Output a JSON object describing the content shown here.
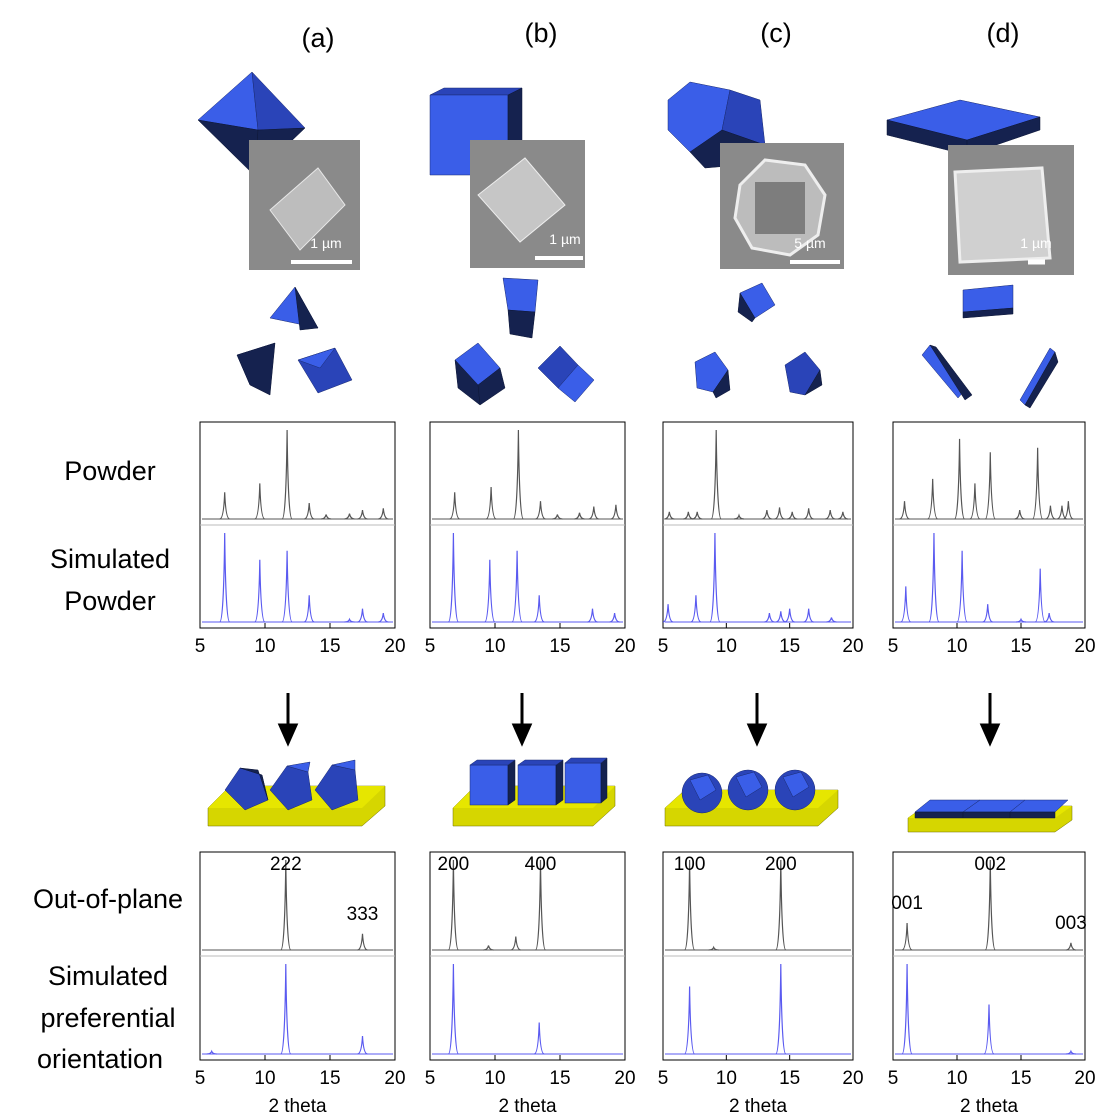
{
  "figure": {
    "column_labels": [
      "(a)",
      "(b)",
      "(c)",
      "(d)"
    ],
    "scale_bars": [
      "1 µm",
      "1 µm",
      "5 µm",
      "1 µm"
    ],
    "row_labels": [
      [
        "Powder"
      ],
      [
        "Simulated",
        "Powder"
      ],
      [
        "Out-of-plane"
      ],
      [
        "Simulated",
        "preferential",
        "orientation"
      ]
    ]
  },
  "chart_data": [
    {
      "type": "xrd",
      "xlim": [
        5,
        20
      ],
      "xticks": [
        5,
        10,
        15,
        20
      ],
      "ylim": [
        0,
        1
      ],
      "series": [
        {
          "color": "#555555",
          "x": [
            6.9,
            9.6,
            11.7,
            13.4,
            14.7,
            16.5,
            17.5,
            19.1
          ],
          "values": [
            0.3,
            0.4,
            1,
            0.18,
            0.05,
            0.06,
            0.1,
            0.12
          ]
        },
        {
          "color": "#5a5af0",
          "x": [
            6.9,
            9.6,
            11.7,
            13.4,
            16.5,
            17.5,
            19.1
          ],
          "values": [
            1,
            0.7,
            0.8,
            0.3,
            0.03,
            0.15,
            0.1
          ]
        }
      ]
    },
    {
      "type": "xrd",
      "xlim": [
        5,
        20
      ],
      "xticks": [
        5,
        10,
        15,
        20
      ],
      "ylim": [
        0,
        1
      ],
      "series": [
        {
          "color": "#555555",
          "x": [
            6.9,
            9.7,
            11.8,
            13.5,
            14.8,
            16.5,
            17.6,
            19.3
          ],
          "values": [
            0.3,
            0.36,
            1,
            0.2,
            0.05,
            0.07,
            0.14,
            0.16
          ]
        },
        {
          "color": "#5a5af0",
          "x": [
            6.8,
            9.6,
            11.7,
            13.4,
            17.5,
            19.2
          ],
          "values": [
            1,
            0.7,
            0.8,
            0.3,
            0.15,
            0.1
          ]
        }
      ]
    },
    {
      "type": "xrd",
      "xlim": [
        5,
        20
      ],
      "xticks": [
        5,
        10,
        15,
        20
      ],
      "ylim": [
        0,
        1
      ],
      "series": [
        {
          "color": "#555555",
          "x": [
            5.5,
            7,
            7.7,
            9.2,
            11,
            13.2,
            14.2,
            15.2,
            16.5,
            18.2,
            19.2
          ],
          "values": [
            0.08,
            0.08,
            0.08,
            1,
            0.04,
            0.1,
            0.13,
            0.08,
            0.12,
            0.1,
            0.08
          ]
        },
        {
          "color": "#5a5af0",
          "x": [
            5.4,
            7.6,
            9.1,
            13.4,
            14.3,
            15,
            16.5,
            18.3
          ],
          "values": [
            0.2,
            0.3,
            1,
            0.1,
            0.12,
            0.15,
            0.15,
            0.05
          ]
        }
      ]
    },
    {
      "type": "xrd",
      "xlim": [
        5,
        20
      ],
      "xticks": [
        5,
        10,
        15,
        20
      ],
      "ylim": [
        0,
        1
      ],
      "series": [
        {
          "color": "#555555",
          "x": [
            5.9,
            8.1,
            10.2,
            11.4,
            12.6,
            14.9,
            16.3,
            17.3,
            18.2,
            18.7
          ],
          "values": [
            0.2,
            0.45,
            0.9,
            0.4,
            0.75,
            0.1,
            0.8,
            0.15,
            0.15,
            0.2
          ]
        },
        {
          "color": "#5a5af0",
          "x": [
            6,
            8.2,
            10.4,
            12.4,
            15,
            16.5,
            17.2
          ],
          "values": [
            0.4,
            1,
            0.8,
            0.2,
            0.03,
            0.6,
            0.1
          ]
        }
      ]
    },
    {
      "type": "xrd",
      "xlim": [
        5,
        20
      ],
      "xticks": [
        5,
        10,
        15,
        20
      ],
      "ylim": [
        0,
        1
      ],
      "xlabel": "2 theta",
      "annotations": [
        {
          "text": "222",
          "x": 11.6
        },
        {
          "text": "333",
          "x": 17.5
        }
      ],
      "series": [
        {
          "color": "#555555",
          "x": [
            11.6,
            17.5
          ],
          "values": [
            1,
            0.18
          ]
        },
        {
          "color": "#5a5af0",
          "x": [
            5.9,
            11.6,
            17.5
          ],
          "values": [
            0.03,
            1,
            0.2
          ]
        }
      ]
    },
    {
      "type": "xrd",
      "xlim": [
        5,
        20
      ],
      "xticks": [
        5,
        10,
        15,
        20
      ],
      "ylim": [
        0,
        1
      ],
      "xlabel": "2 theta",
      "annotations": [
        {
          "text": "200",
          "x": 6.8
        },
        {
          "text": "400",
          "x": 13.5
        }
      ],
      "series": [
        {
          "color": "#555555",
          "x": [
            6.8,
            9.5,
            11.6,
            13.5
          ],
          "values": [
            1,
            0.05,
            0.15,
            1
          ]
        },
        {
          "color": "#5a5af0",
          "x": [
            6.8,
            13.4
          ],
          "values": [
            1,
            0.35
          ]
        }
      ]
    },
    {
      "type": "xrd",
      "xlim": [
        5,
        20
      ],
      "xticks": [
        5,
        10,
        15,
        20
      ],
      "ylim": [
        0,
        1
      ],
      "xlabel": "2 theta",
      "annotations": [
        {
          "text": "100",
          "x": 7.1
        },
        {
          "text": "200",
          "x": 14.3
        }
      ],
      "series": [
        {
          "color": "#555555",
          "x": [
            7.1,
            9,
            14.3
          ],
          "values": [
            1,
            0.03,
            1
          ]
        },
        {
          "color": "#5a5af0",
          "x": [
            7.1,
            14.3
          ],
          "values": [
            0.75,
            1
          ]
        }
      ]
    },
    {
      "type": "xrd",
      "xlim": [
        5,
        20
      ],
      "xticks": [
        5,
        10,
        15,
        20
      ],
      "ylim": [
        0,
        1
      ],
      "xlabel": "2 theta",
      "annotations": [
        {
          "text": "001",
          "x": 6.1
        },
        {
          "text": "002",
          "x": 12.6
        },
        {
          "text": "003",
          "x": 18.9
        }
      ],
      "series": [
        {
          "color": "#555555",
          "x": [
            6.1,
            12.6,
            18.9
          ],
          "values": [
            0.3,
            1,
            0.08
          ]
        },
        {
          "color": "#5a5af0",
          "x": [
            6.1,
            12.5,
            18.9
          ],
          "values": [
            1,
            0.55,
            0.03
          ]
        }
      ]
    }
  ]
}
